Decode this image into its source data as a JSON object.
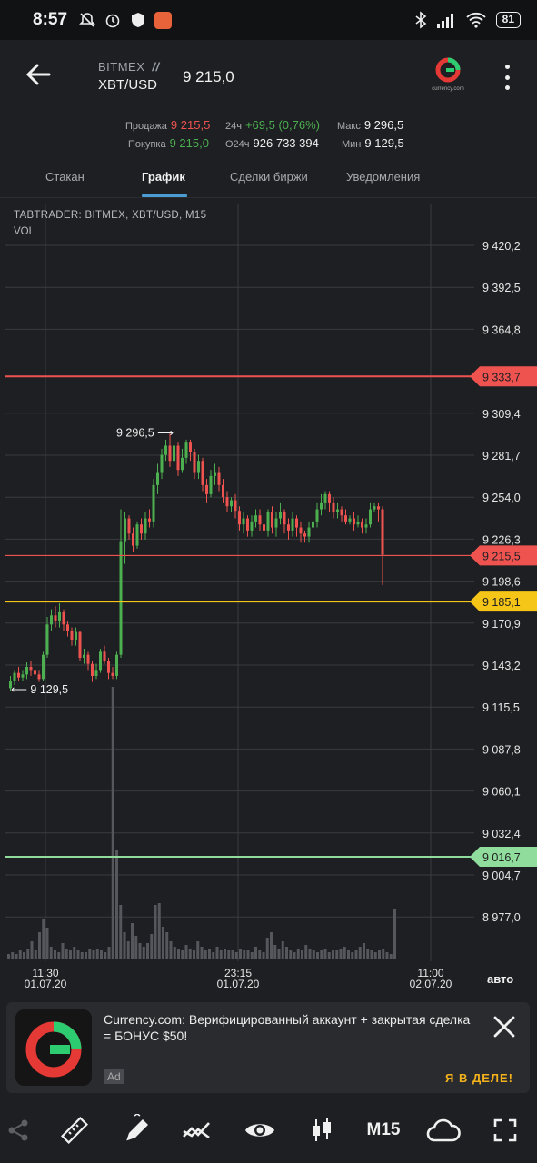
{
  "status_bar": {
    "time": "8:57",
    "battery": "81"
  },
  "header": {
    "exchange": "BITMEX",
    "pair": "XBT/USD",
    "last_price": "9 215,0",
    "logo_caption": "currency.com"
  },
  "stats": {
    "sell_label": "Продажа",
    "sell_value": "9 215,5",
    "buy_label": "Покупка",
    "buy_value": "9 215,0",
    "change_label": "24ч",
    "change_value": "+69,5 (0,76%)",
    "volume_label": "O24ч",
    "volume_value": "926 733 394",
    "max_label": "Макс",
    "max_value": "9 296,5",
    "min_label": "Мин",
    "min_value": "9 129,5"
  },
  "tabs": [
    {
      "label": "Стакан",
      "active": false
    },
    {
      "label": "График",
      "active": true
    },
    {
      "label": "Сделки биржи",
      "active": false
    },
    {
      "label": "Уведомления",
      "active": false
    }
  ],
  "chart": {
    "title": "TABTRADER: BITMEX, XBT/USD, M15",
    "vol_label": "VOL",
    "auto_label": "авто",
    "max_annotation": "9 296,5",
    "min_annotation": "9 129,5",
    "y_ticks": [
      "9 420,2",
      "9 392,5",
      "9 364,8",
      "9 309,4",
      "9 281,7",
      "9 254,0",
      "9 226,3",
      "9 198,6",
      "9 170,9",
      "9 143,2",
      "9 115,5",
      "9 087,8",
      "9 060,1",
      "9 032,4",
      "9 004,7",
      "8 977,0"
    ],
    "x_ticks": [
      {
        "time": "11:30",
        "date": "01.07.20"
      },
      {
        "time": "23:15",
        "date": "01.07.20"
      },
      {
        "time": "11:00",
        "date": "02.07.20"
      }
    ],
    "levels": [
      {
        "value": "9 333,7",
        "color": "#ef5350"
      },
      {
        "value": "9 215,5",
        "color": "#ef5350"
      },
      {
        "value": "9 185,1",
        "color": "#f5c518"
      },
      {
        "value": "9 016,7",
        "color": "#8fdc9c"
      }
    ]
  },
  "ad": {
    "text": "Currency.com: Верифицированный аккаунт + закрытая сделка = БОНУС $50!",
    "badge": "Ad",
    "cta": "Я В ДЕЛЕ!"
  },
  "toolbar": {
    "timeframe": "M15",
    "icons": [
      "share-icon",
      "ruler-icon",
      "pencil-icon",
      "indicators-icon",
      "eye-icon",
      "candles-icon",
      "cloud-icon",
      "fullscreen-icon"
    ]
  }
}
